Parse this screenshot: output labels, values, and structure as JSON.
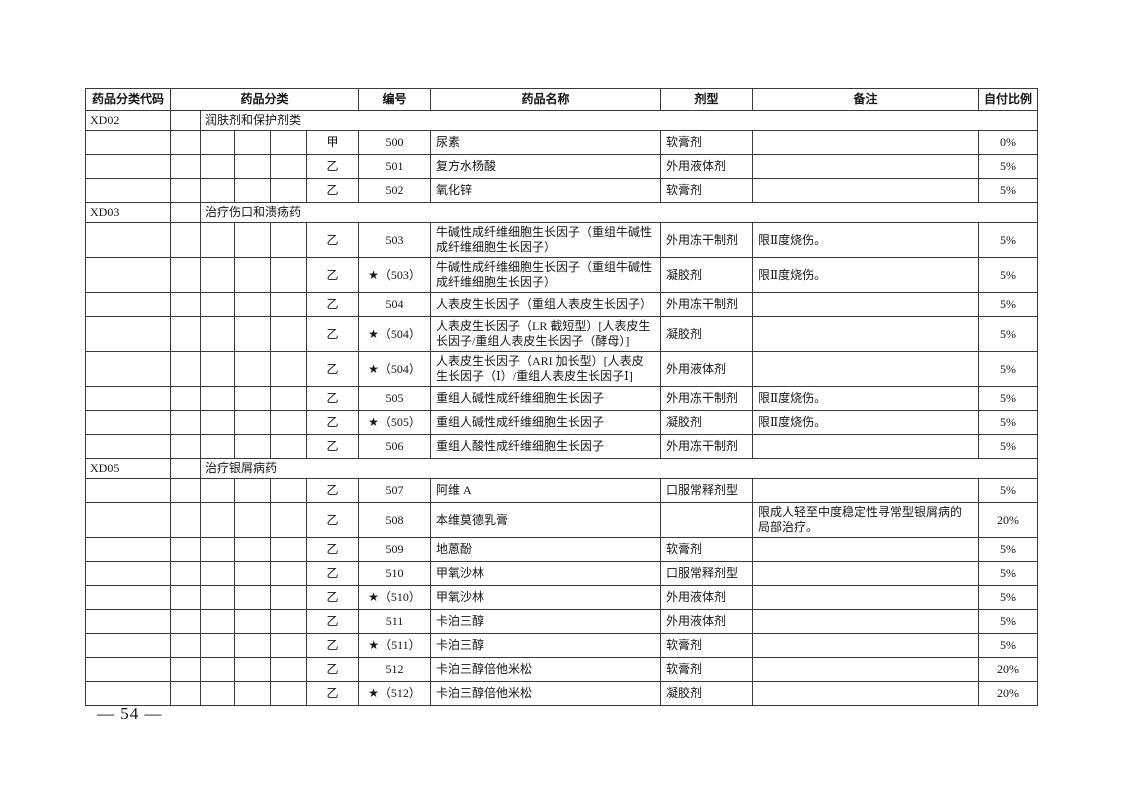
{
  "page": {
    "number_label": "— 54 —"
  },
  "table": {
    "headers": [
      "药品分类代码",
      "药品分类",
      "编号",
      "药品名称",
      "剂型",
      "备注",
      "自付比例"
    ],
    "rows": [
      {
        "type": "section",
        "code": "XD02",
        "title": "润肤剂和保护剂类"
      },
      {
        "type": "drug",
        "class": "甲",
        "no": "500",
        "name": "尿素",
        "form": "软膏剂",
        "remark": "",
        "ratio": "0%"
      },
      {
        "type": "drug",
        "class": "乙",
        "no": "501",
        "name": "复方水杨酸",
        "form": "外用液体剂",
        "remark": "",
        "ratio": "5%"
      },
      {
        "type": "drug",
        "class": "乙",
        "no": "502",
        "name": "氧化锌",
        "form": "软膏剂",
        "remark": "",
        "ratio": "5%"
      },
      {
        "type": "section",
        "code": "XD03",
        "title": "治疗伤口和溃疡药"
      },
      {
        "type": "drug",
        "class": "乙",
        "no": "503",
        "name": "牛碱性成纤维细胞生长因子（重组牛碱性成纤维细胞生长因子）",
        "form": "外用冻干制剂",
        "remark": "限Ⅱ度烧伤。",
        "ratio": "5%"
      },
      {
        "type": "drug",
        "class": "乙",
        "no": "★（503）",
        "name": "牛碱性成纤维细胞生长因子（重组牛碱性成纤维细胞生长因子）",
        "form": "凝胶剂",
        "remark": "限Ⅱ度烧伤。",
        "ratio": "5%"
      },
      {
        "type": "drug",
        "class": "乙",
        "no": "504",
        "name": "人表皮生长因子（重组人表皮生长因子）",
        "form": "外用冻干制剂",
        "remark": "",
        "ratio": "5%"
      },
      {
        "type": "drug",
        "class": "乙",
        "no": "★（504）",
        "name": "人表皮生长因子（LR 截短型）[人表皮生长因子/重组人表皮生长因子（酵母）]",
        "form": "凝胶剂",
        "remark": "",
        "ratio": "5%"
      },
      {
        "type": "drug",
        "class": "乙",
        "no": "★（504）",
        "name": "人表皮生长因子（ARI 加长型）[人表皮生长因子（Ⅰ）/重组人表皮生长因子Ⅰ]",
        "form": "外用液体剂",
        "remark": "",
        "ratio": "5%"
      },
      {
        "type": "drug",
        "class": "乙",
        "no": "505",
        "name": "重组人碱性成纤维细胞生长因子",
        "form": "外用冻干制剂",
        "remark": "限Ⅱ度烧伤。",
        "ratio": "5%"
      },
      {
        "type": "drug",
        "class": "乙",
        "no": "★（505）",
        "name": "重组人碱性成纤维细胞生长因子",
        "form": "凝胶剂",
        "remark": "限Ⅱ度烧伤。",
        "ratio": "5%"
      },
      {
        "type": "drug",
        "class": "乙",
        "no": "506",
        "name": "重组人酸性成纤维细胞生长因子",
        "form": "外用冻干制剂",
        "remark": "",
        "ratio": "5%"
      },
      {
        "type": "section",
        "code": "XD05",
        "title": "治疗银屑病药"
      },
      {
        "type": "drug",
        "class": "乙",
        "no": "507",
        "name": "阿维 A",
        "form": "口服常释剂型",
        "remark": "",
        "ratio": "5%"
      },
      {
        "type": "drug",
        "class": "乙",
        "no": "508",
        "name": "本维莫德乳膏",
        "form": "",
        "remark": "限成人轻至中度稳定性寻常型银屑病的局部治疗。",
        "ratio": "20%"
      },
      {
        "type": "drug",
        "class": "乙",
        "no": "509",
        "name": "地蒽酚",
        "form": "软膏剂",
        "remark": "",
        "ratio": "5%"
      },
      {
        "type": "drug",
        "class": "乙",
        "no": "510",
        "name": "甲氧沙林",
        "form": "口服常释剂型",
        "remark": "",
        "ratio": "5%"
      },
      {
        "type": "drug",
        "class": "乙",
        "no": "★（510）",
        "name": "甲氧沙林",
        "form": "外用液体剂",
        "remark": "",
        "ratio": "5%"
      },
      {
        "type": "drug",
        "class": "乙",
        "no": "511",
        "name": "卡泊三醇",
        "form": "外用液体剂",
        "remark": "",
        "ratio": "5%"
      },
      {
        "type": "drug",
        "class": "乙",
        "no": "★（511）",
        "name": "卡泊三醇",
        "form": "软膏剂",
        "remark": "",
        "ratio": "5%"
      },
      {
        "type": "drug",
        "class": "乙",
        "no": "512",
        "name": "卡泊三醇倍他米松",
        "form": "软膏剂",
        "remark": "",
        "ratio": "20%"
      },
      {
        "type": "drug",
        "class": "乙",
        "no": "★（512）",
        "name": "卡泊三醇倍他米松",
        "form": "凝胶剂",
        "remark": "",
        "ratio": "20%"
      }
    ]
  }
}
